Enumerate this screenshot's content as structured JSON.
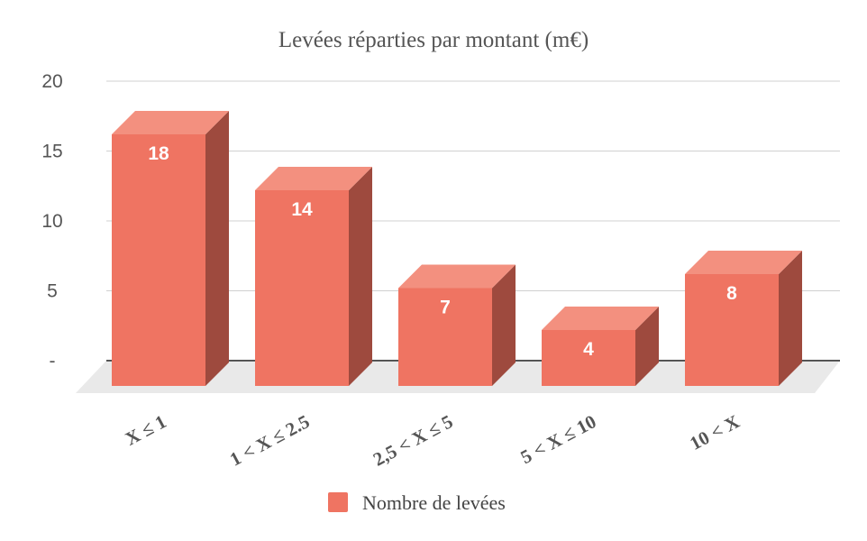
{
  "chart_data": {
    "type": "bar",
    "title": "Levées réparties par montant (m€)",
    "categories": [
      "X ≤ 1",
      "1 < X ≤ 2.5",
      "2,5 < X ≤ 5",
      "5 < X ≤ 10",
      "10 < X"
    ],
    "series": [
      {
        "name": "Nombre de levées",
        "values": [
          18,
          14,
          7,
          4,
          8
        ]
      }
    ],
    "y_ticks": [
      "-",
      "5",
      "10",
      "15",
      "20"
    ],
    "ylim": [
      0,
      20
    ],
    "grid": true,
    "legend_position": "bottom",
    "style": "3d",
    "colors": {
      "front": "#ef7462",
      "top": "#f3907f",
      "side": "#9e4a3e",
      "floor": "#e9e9e9",
      "gridline": "#d0d0d0",
      "baseline": "#333333"
    }
  }
}
